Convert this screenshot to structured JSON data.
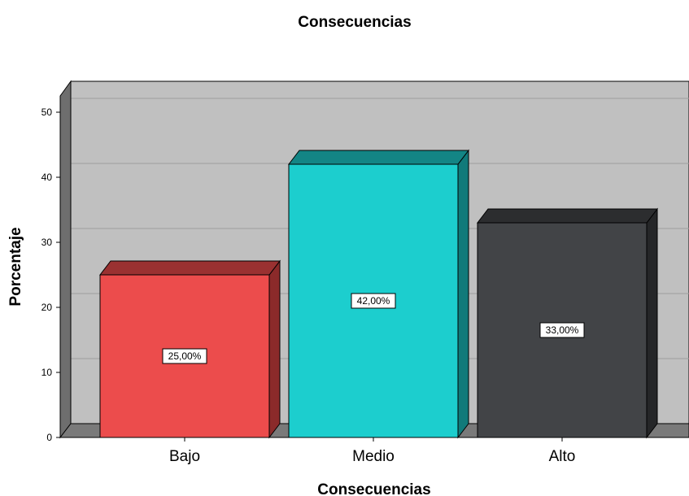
{
  "chart_data": {
    "type": "bar",
    "title": "Consecuencias",
    "xlabel": "Consecuencias",
    "ylabel": "Porcentaje",
    "categories": [
      "Bajo",
      "Medio",
      "Alto"
    ],
    "values": [
      25,
      42,
      33
    ],
    "data_labels": [
      "25,00%",
      "42,00%",
      "33,00%"
    ],
    "ylim": [
      0,
      50
    ],
    "yticks": [
      0,
      10,
      20,
      30,
      40,
      50
    ],
    "grid": true,
    "legend": "none",
    "colors": [
      "#ec4c4c",
      "#1ccece",
      "#424447"
    ],
    "side_colors": [
      "#8b2a2a",
      "#117a7a",
      "#252628"
    ],
    "top_colors": [
      "#9a3131",
      "#138585",
      "#2c2d2f"
    ]
  }
}
